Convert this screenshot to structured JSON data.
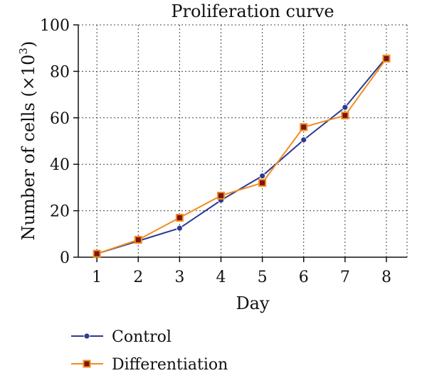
{
  "chart_data": {
    "type": "line",
    "title": "Proliferation curve",
    "xlabel": "Day",
    "ylabel_main": "Number of cells (×10",
    "ylabel_exp": "3",
    "ylabel_close": ")",
    "x": [
      1,
      2,
      3,
      4,
      5,
      6,
      7,
      8
    ],
    "xlim": [
      0.55,
      8.5
    ],
    "ylim": [
      0,
      100
    ],
    "yticks": [
      0,
      20,
      40,
      60,
      80,
      100
    ],
    "grid": true,
    "legend_position": "bottom-left",
    "series": [
      {
        "name": "Control",
        "color": "#2b3a93",
        "marker": "circle",
        "values": [
          1.5,
          7,
          12.5,
          24.5,
          35,
          50.5,
          64.5,
          86
        ]
      },
      {
        "name": "Differentiation",
        "color": "#f28c1e",
        "marker_fill": "#7a1414",
        "marker": "square",
        "values": [
          1.5,
          7.5,
          17,
          26.5,
          32,
          56,
          61,
          85.5
        ]
      }
    ]
  }
}
